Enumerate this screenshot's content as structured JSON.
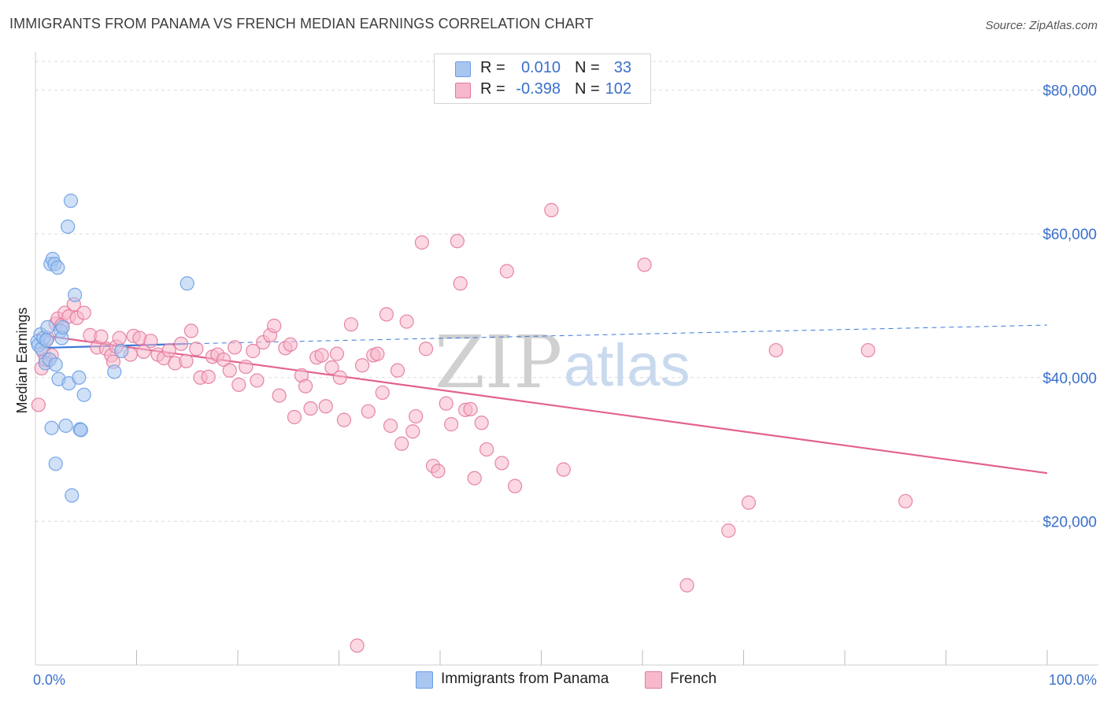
{
  "title": "IMMIGRANTS FROM PANAMA VS FRENCH MEDIAN EARNINGS CORRELATION CHART",
  "source": "Source: ZipAtlas.com",
  "watermark": {
    "part1": "ZIP",
    "part2": "atlas"
  },
  "legend": {
    "rows": [
      {
        "r_label": "R =",
        "r_value": "0.010",
        "n_label": "N =",
        "n_value": "33",
        "color": "#a8c6f0"
      },
      {
        "r_label": "R =",
        "r_value": "-0.398",
        "n_label": "N =",
        "n_value": "102",
        "color": "#f7b8cb"
      }
    ]
  },
  "bottom_legend": {
    "items": [
      {
        "label": "Immigrants from Panama",
        "color": "#a8c6f0"
      },
      {
        "label": "French",
        "color": "#f7b8cb"
      }
    ]
  },
  "chart_data": {
    "type": "scatter",
    "title": "IMMIGRANTS FROM PANAMA VS FRENCH MEDIAN EARNINGS CORRELATION CHART",
    "xlabel": "",
    "ylabel": "Median Earnings",
    "xlim": [
      0,
      100
    ],
    "ylim": [
      0,
      84000
    ],
    "x_tick_labels": [
      "0.0%",
      "100.0%"
    ],
    "y_ticks": [
      20000,
      40000,
      60000,
      80000
    ],
    "y_tick_labels": [
      "$20,000",
      "$40,000",
      "$60,000",
      "$80,000"
    ],
    "grid": true,
    "legend_position": "top-center",
    "series": [
      {
        "name": "Immigrants from Panama",
        "color": "#6b9de3",
        "fill": "#a8c6f0",
        "points": [
          [
            0.2,
            45000
          ],
          [
            0.3,
            44500
          ],
          [
            0.5,
            46000
          ],
          [
            0.6,
            44000
          ],
          [
            0.8,
            45500
          ],
          [
            1.0,
            42000
          ],
          [
            1.2,
            47000
          ],
          [
            1.4,
            42500
          ],
          [
            1.5,
            55800
          ],
          [
            1.6,
            33000
          ],
          [
            1.7,
            56500
          ],
          [
            1.9,
            55800
          ],
          [
            2.0,
            41800
          ],
          [
            2.0,
            28000
          ],
          [
            2.2,
            55300
          ],
          [
            2.3,
            39800
          ],
          [
            2.5,
            46500
          ],
          [
            2.6,
            45500
          ],
          [
            2.7,
            47000
          ],
          [
            3.0,
            33300
          ],
          [
            3.2,
            61000
          ],
          [
            3.3,
            39200
          ],
          [
            3.5,
            64600
          ],
          [
            3.6,
            23600
          ],
          [
            3.9,
            51500
          ],
          [
            4.3,
            40000
          ],
          [
            4.4,
            32800
          ],
          [
            4.5,
            32700
          ],
          [
            4.8,
            37600
          ],
          [
            7.8,
            40800
          ],
          [
            8.5,
            43700
          ],
          [
            15.0,
            53100
          ],
          [
            1.1,
            45200
          ]
        ],
        "trend": {
          "x": [
            0,
            15,
            100
          ],
          "y": [
            44100,
            44700,
            47300
          ]
        }
      },
      {
        "name": "French",
        "color": "#e3799c",
        "fill": "#f7b8cb",
        "points": [
          [
            0.3,
            36200
          ],
          [
            0.6,
            41300
          ],
          [
            0.8,
            43500
          ],
          [
            1.0,
            42500
          ],
          [
            1.2,
            45500
          ],
          [
            1.6,
            43100
          ],
          [
            2.0,
            47500
          ],
          [
            2.2,
            48200
          ],
          [
            2.6,
            47300
          ],
          [
            2.9,
            49000
          ],
          [
            3.3,
            48500
          ],
          [
            3.8,
            50200
          ],
          [
            4.1,
            48300
          ],
          [
            4.8,
            49000
          ],
          [
            5.4,
            45900
          ],
          [
            6.1,
            44200
          ],
          [
            6.5,
            45700
          ],
          [
            7.0,
            44000
          ],
          [
            7.5,
            43100
          ],
          [
            7.7,
            42200
          ],
          [
            8.0,
            44300
          ],
          [
            8.3,
            45500
          ],
          [
            9.4,
            43200
          ],
          [
            9.7,
            45800
          ],
          [
            10.3,
            45500
          ],
          [
            10.7,
            43600
          ],
          [
            11.4,
            45100
          ],
          [
            12.1,
            43200
          ],
          [
            12.7,
            42700
          ],
          [
            13.2,
            43800
          ],
          [
            13.8,
            42000
          ],
          [
            14.4,
            44700
          ],
          [
            14.9,
            42300
          ],
          [
            15.4,
            46500
          ],
          [
            15.9,
            44000
          ],
          [
            16.3,
            40000
          ],
          [
            17.1,
            40100
          ],
          [
            17.5,
            42900
          ],
          [
            18.0,
            43200
          ],
          [
            18.6,
            42500
          ],
          [
            19.2,
            41000
          ],
          [
            19.7,
            44200
          ],
          [
            20.1,
            39000
          ],
          [
            20.8,
            41500
          ],
          [
            21.5,
            43700
          ],
          [
            21.9,
            39600
          ],
          [
            22.5,
            44900
          ],
          [
            23.2,
            45900
          ],
          [
            23.6,
            47200
          ],
          [
            24.1,
            37500
          ],
          [
            24.7,
            44100
          ],
          [
            25.2,
            44600
          ],
          [
            25.6,
            34500
          ],
          [
            26.3,
            40300
          ],
          [
            26.7,
            38800
          ],
          [
            27.2,
            35700
          ],
          [
            27.8,
            42800
          ],
          [
            28.3,
            43100
          ],
          [
            28.7,
            36000
          ],
          [
            29.3,
            41400
          ],
          [
            29.8,
            43300
          ],
          [
            30.1,
            40000
          ],
          [
            30.5,
            34100
          ],
          [
            31.2,
            47400
          ],
          [
            31.8,
            2700
          ],
          [
            32.3,
            41700
          ],
          [
            32.9,
            35300
          ],
          [
            33.4,
            43100
          ],
          [
            33.8,
            43300
          ],
          [
            34.3,
            37900
          ],
          [
            34.7,
            48800
          ],
          [
            35.1,
            33300
          ],
          [
            35.8,
            41000
          ],
          [
            36.2,
            30800
          ],
          [
            36.7,
            47800
          ],
          [
            37.3,
            32500
          ],
          [
            37.6,
            34600
          ],
          [
            38.2,
            58800
          ],
          [
            38.6,
            44000
          ],
          [
            39.3,
            27700
          ],
          [
            39.8,
            27000
          ],
          [
            40.6,
            36400
          ],
          [
            41.1,
            33500
          ],
          [
            41.7,
            59000
          ],
          [
            42.0,
            53100
          ],
          [
            42.5,
            35500
          ],
          [
            43.0,
            35600
          ],
          [
            43.4,
            26000
          ],
          [
            44.1,
            33700
          ],
          [
            44.6,
            30000
          ],
          [
            46.1,
            28100
          ],
          [
            46.6,
            54800
          ],
          [
            47.4,
            24900
          ],
          [
            51.0,
            63300
          ],
          [
            52.2,
            27200
          ],
          [
            60.2,
            55700
          ],
          [
            64.4,
            11100
          ],
          [
            68.5,
            18700
          ],
          [
            70.5,
            22600
          ],
          [
            73.2,
            43800
          ],
          [
            82.3,
            43800
          ],
          [
            86.0,
            22800
          ]
        ],
        "trend": {
          "x": [
            0,
            100
          ],
          "y": [
            46000,
            26700
          ]
        }
      }
    ]
  }
}
